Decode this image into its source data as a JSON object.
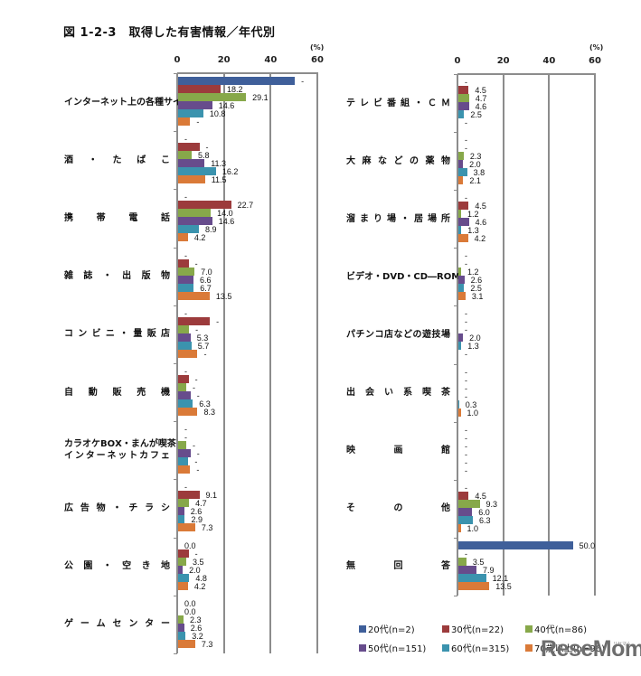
{
  "title": "図 1-2-3　取得した有害情報／年代別",
  "unit_label": "(%)",
  "legend": [
    {
      "label": "20代(n=2)",
      "color": "#3F5F9A"
    },
    {
      "label": "30代(n=22)",
      "color": "#9C3B3C"
    },
    {
      "label": "40代(n=86)",
      "color": "#87A84A"
    },
    {
      "label": "50代(n=151)",
      "color": "#674C8C"
    },
    {
      "label": "60代(n=315)",
      "color": "#3B93AE"
    },
    {
      "label": "70歳以上(n=96)",
      "color": "#DA7A38"
    }
  ],
  "watermark": {
    "main": "ReseMom",
    "sub": "リセマム"
  },
  "chart_data": [
    {
      "type": "bar",
      "orientation": "horizontal",
      "title": "図 1-2-3 取得した有害情報／年代別 (左)",
      "xlabel": "(%)",
      "ylabel": "",
      "xlim": [
        0,
        60
      ],
      "xticks": [
        0,
        20,
        40,
        60
      ],
      "grid": true,
      "legend_position": "bottom-right",
      "categories": [
        "インターネット上の各種サイト",
        "酒・たばこ",
        "携帯電話",
        "雑誌・出版物",
        "コンビニ・量販店",
        "自動販売機",
        "カラオケBOX・まんが喫茶・\nインターネットカフェ",
        "広告物・チラシ",
        "公園・空き地",
        "ゲームセンター"
      ],
      "series": [
        {
          "name": "20代(n=2)",
          "color": "#3F5F9A",
          "values": [
            50.0,
            0,
            0,
            0,
            0,
            0,
            0,
            0,
            0,
            0
          ],
          "labels": [
            "-",
            "-",
            "-",
            "-",
            "-",
            "-",
            "-",
            "-",
            "0.0",
            "0.0"
          ]
        },
        {
          "name": "30代(n=22)",
          "color": "#9C3B3C",
          "values": [
            18.2,
            9.1,
            22.7,
            4.5,
            13.6,
            4.5,
            0,
            9.1,
            4.5,
            0
          ],
          "labels": [
            "18.2",
            "-",
            "22.7",
            "-",
            "-",
            "-",
            "-",
            "9.1",
            "-",
            "0.0"
          ]
        },
        {
          "name": "40代(n=86)",
          "color": "#87A84A",
          "values": [
            29.1,
            5.8,
            14.0,
            7.0,
            4.7,
            3.5,
            3.5,
            4.7,
            3.5,
            2.3
          ],
          "labels": [
            "29.1",
            "5.8",
            "14.0",
            "7.0",
            "-",
            "-",
            "-",
            "4.7",
            "3.5",
            "2.3"
          ]
        },
        {
          "name": "50代(n=151)",
          "color": "#674C8C",
          "values": [
            14.6,
            11.3,
            14.6,
            6.6,
            5.3,
            5.3,
            5.3,
            2.6,
            2.0,
            2.6
          ],
          "labels": [
            "14.6",
            "11.3",
            "14.6",
            "6.6",
            "5.3",
            "-",
            "-",
            "2.6",
            "2.0",
            "2.6"
          ]
        },
        {
          "name": "60代(n=315)",
          "color": "#3B93AE",
          "values": [
            10.8,
            16.2,
            8.9,
            6.7,
            5.7,
            6.3,
            4.4,
            2.9,
            4.8,
            3.2
          ],
          "labels": [
            "10.8",
            "16.2",
            "8.9",
            "6.7",
            "5.7",
            "6.3",
            "-",
            "2.9",
            "4.8",
            "3.2"
          ]
        },
        {
          "name": "70歳以上(n=96)",
          "color": "#DA7A38",
          "values": [
            5.2,
            11.5,
            4.2,
            13.5,
            8.3,
            8.3,
            5.2,
            7.3,
            4.2,
            7.3
          ],
          "labels": [
            "-",
            "11.5",
            "4.2",
            "13.5",
            "-",
            "8.3",
            "-",
            "7.3",
            "4.2",
            "7.3"
          ]
        }
      ]
    },
    {
      "type": "bar",
      "orientation": "horizontal",
      "title": "図 1-2-3 取得した有害情報／年代別 (右)",
      "xlabel": "(%)",
      "ylabel": "",
      "xlim": [
        0,
        60
      ],
      "xticks": [
        0,
        20,
        40,
        60
      ],
      "grid": true,
      "legend_position": "bottom-right",
      "categories": [
        "テレビ番組・ＣＭ",
        "大麻などの薬物",
        "溜まり場・居場所",
        "ビデオ・DVD・CD―ROM",
        "パチンコ店などの遊技場",
        "出会い系喫茶",
        "映画館",
        "その他",
        "無回答"
      ],
      "series": [
        {
          "name": "20代(n=2)",
          "color": "#3F5F9A",
          "values": [
            0,
            0,
            0,
            0,
            0,
            0,
            0,
            0,
            50.0
          ],
          "labels": [
            "-",
            "-",
            "-",
            "-",
            "-",
            "-",
            "-",
            "-",
            "50.0"
          ]
        },
        {
          "name": "30代(n=22)",
          "color": "#9C3B3C",
          "values": [
            4.5,
            0,
            4.5,
            0,
            0,
            0,
            0,
            4.5,
            0
          ],
          "labels": [
            "4.5",
            "-",
            "4.5",
            "-",
            "-",
            "-",
            "-",
            "4.5",
            "-"
          ]
        },
        {
          "name": "40代(n=86)",
          "color": "#87A84A",
          "values": [
            4.7,
            2.3,
            1.2,
            1.2,
            0,
            0,
            0,
            9.3,
            3.5
          ],
          "labels": [
            "4.7",
            "2.3",
            "1.2",
            "1.2",
            "-",
            "-",
            "-",
            "9.3",
            "3.5"
          ]
        },
        {
          "name": "50代(n=151)",
          "color": "#674C8C",
          "values": [
            4.6,
            2.0,
            4.6,
            2.6,
            2.0,
            0,
            0,
            6.0,
            7.9
          ],
          "labels": [
            "4.6",
            "2.0",
            "4.6",
            "2.6",
            "2.0",
            "-",
            "-",
            "6.0",
            "7.9"
          ]
        },
        {
          "name": "60代(n=315)",
          "color": "#3B93AE",
          "values": [
            2.5,
            3.8,
            1.3,
            2.5,
            1.3,
            0.3,
            0,
            6.3,
            12.1
          ],
          "labels": [
            "2.5",
            "3.8",
            "1.3",
            "2.5",
            "1.3",
            "0.3",
            "-",
            "6.3",
            "12.1"
          ]
        },
        {
          "name": "70歳以上(n=96)",
          "color": "#DA7A38",
          "values": [
            0,
            2.1,
            4.2,
            3.1,
            0,
            1.0,
            0,
            1.0,
            13.5
          ],
          "labels": [
            "-",
            "2.1",
            "4.2",
            "3.1",
            "-",
            "1.0",
            "-",
            "1.0",
            "13.5"
          ]
        }
      ]
    }
  ]
}
